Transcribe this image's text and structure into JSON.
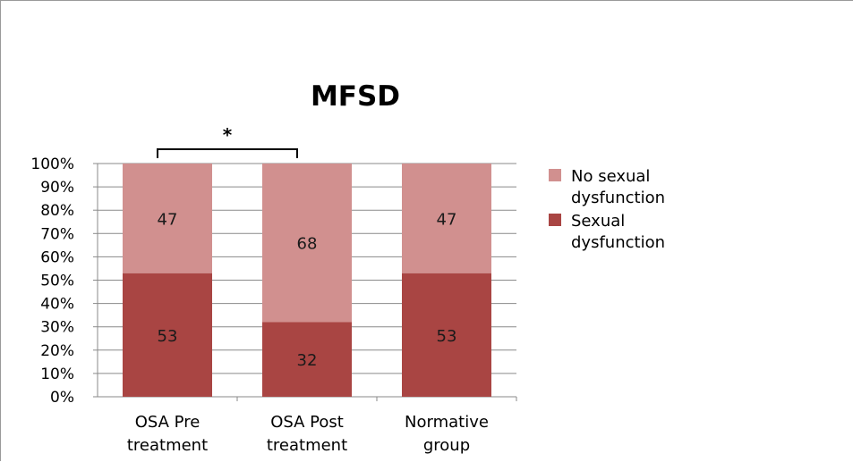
{
  "chart_data": {
    "type": "bar",
    "stacked": true,
    "percent_stacked": true,
    "title": "MFSD",
    "xlabel": "",
    "ylabel": "",
    "ylim": [
      0,
      100
    ],
    "y_tick_labels": [
      "0%",
      "10%",
      "20%",
      "30%",
      "40%",
      "50%",
      "60%",
      "70%",
      "80%",
      "90%",
      "100%"
    ],
    "grid": true,
    "categories": [
      [
        "OSA Pre",
        "treatment"
      ],
      [
        "OSA Post",
        "treatment"
      ],
      [
        "Normative",
        "group"
      ]
    ],
    "series": [
      {
        "name": "Sexual dysfunction",
        "values": [
          53,
          32,
          53
        ],
        "color": "#a94543"
      },
      {
        "name": "No sexual dysfunction",
        "values": [
          47,
          68,
          47
        ],
        "color": "#d1908f"
      }
    ],
    "legend": {
      "placement": "right",
      "entries": [
        {
          "lines": [
            "No sexual",
            "dysfunction"
          ],
          "color": "#d1908f"
        },
        {
          "lines": [
            "Sexual",
            "dysfunction"
          ],
          "color": "#a94543"
        }
      ]
    },
    "annotations": [
      {
        "type": "significance-bracket",
        "between": [
          0,
          1
        ],
        "text": "*"
      }
    ]
  }
}
